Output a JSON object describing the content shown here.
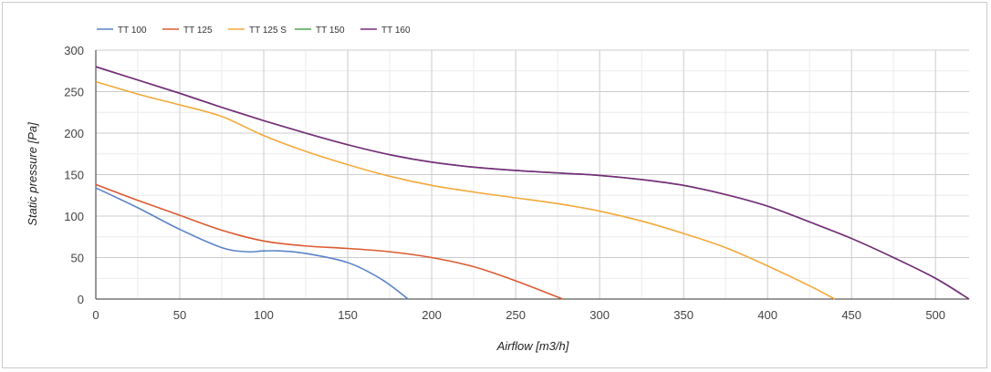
{
  "chart_data": {
    "type": "line",
    "xlabel": "Airflow [m3/h]",
    "ylabel": "Static pressure [Pa]",
    "xlim": [
      0,
      520
    ],
    "ylim": [
      0,
      300
    ],
    "xticks": [
      0,
      50,
      100,
      150,
      200,
      250,
      300,
      350,
      400,
      450,
      500
    ],
    "yticks": [
      0,
      50,
      100,
      150,
      200,
      250,
      300
    ],
    "grid": true,
    "legend": "top-left",
    "series": [
      {
        "name": "TT 100",
        "color": "#5b84c8",
        "x": [
          0,
          25,
          50,
          75,
          90,
          100,
          110,
          125,
          150,
          170,
          186
        ],
        "y": [
          134,
          110,
          84,
          62,
          57,
          58,
          58,
          55,
          44,
          24,
          0
        ]
      },
      {
        "name": "TT 125",
        "color": "#dc5a32",
        "x": [
          0,
          25,
          50,
          75,
          100,
          125,
          150,
          175,
          200,
          225,
          250,
          278
        ],
        "y": [
          138,
          119,
          101,
          83,
          70,
          64,
          61,
          57,
          50,
          39,
          22,
          0
        ]
      },
      {
        "name": "TT 125 S",
        "color": "#f2a93b",
        "x": [
          0,
          25,
          50,
          75,
          100,
          125,
          150,
          175,
          200,
          225,
          250,
          275,
          300,
          325,
          350,
          375,
          400,
          425,
          440
        ],
        "y": [
          262,
          247,
          234,
          220,
          197,
          178,
          162,
          148,
          137,
          129,
          122,
          115,
          106,
          94,
          79,
          62,
          40,
          16,
          0
        ]
      },
      {
        "name": "TT 150",
        "color": "#4ca64c",
        "x": [
          0,
          25,
          50,
          75,
          100,
          125,
          150,
          175,
          200,
          225,
          250,
          275,
          300,
          325,
          350,
          375,
          400,
          425,
          450,
          475,
          500,
          520
        ],
        "y": [
          280,
          264,
          248,
          231,
          215,
          200,
          186,
          174,
          165,
          159,
          155,
          152,
          149,
          144,
          137,
          126,
          112,
          93,
          73,
          50,
          25,
          0
        ]
      },
      {
        "name": "TT 160",
        "color": "#7a2a7e",
        "x": [
          0,
          25,
          50,
          75,
          100,
          125,
          150,
          175,
          200,
          225,
          250,
          275,
          300,
          325,
          350,
          375,
          400,
          425,
          450,
          475,
          500,
          520
        ],
        "y": [
          280,
          264,
          248,
          231,
          215,
          200,
          186,
          174,
          165,
          159,
          155,
          152,
          149,
          144,
          137,
          126,
          112,
          93,
          73,
          50,
          25,
          0
        ]
      }
    ]
  }
}
